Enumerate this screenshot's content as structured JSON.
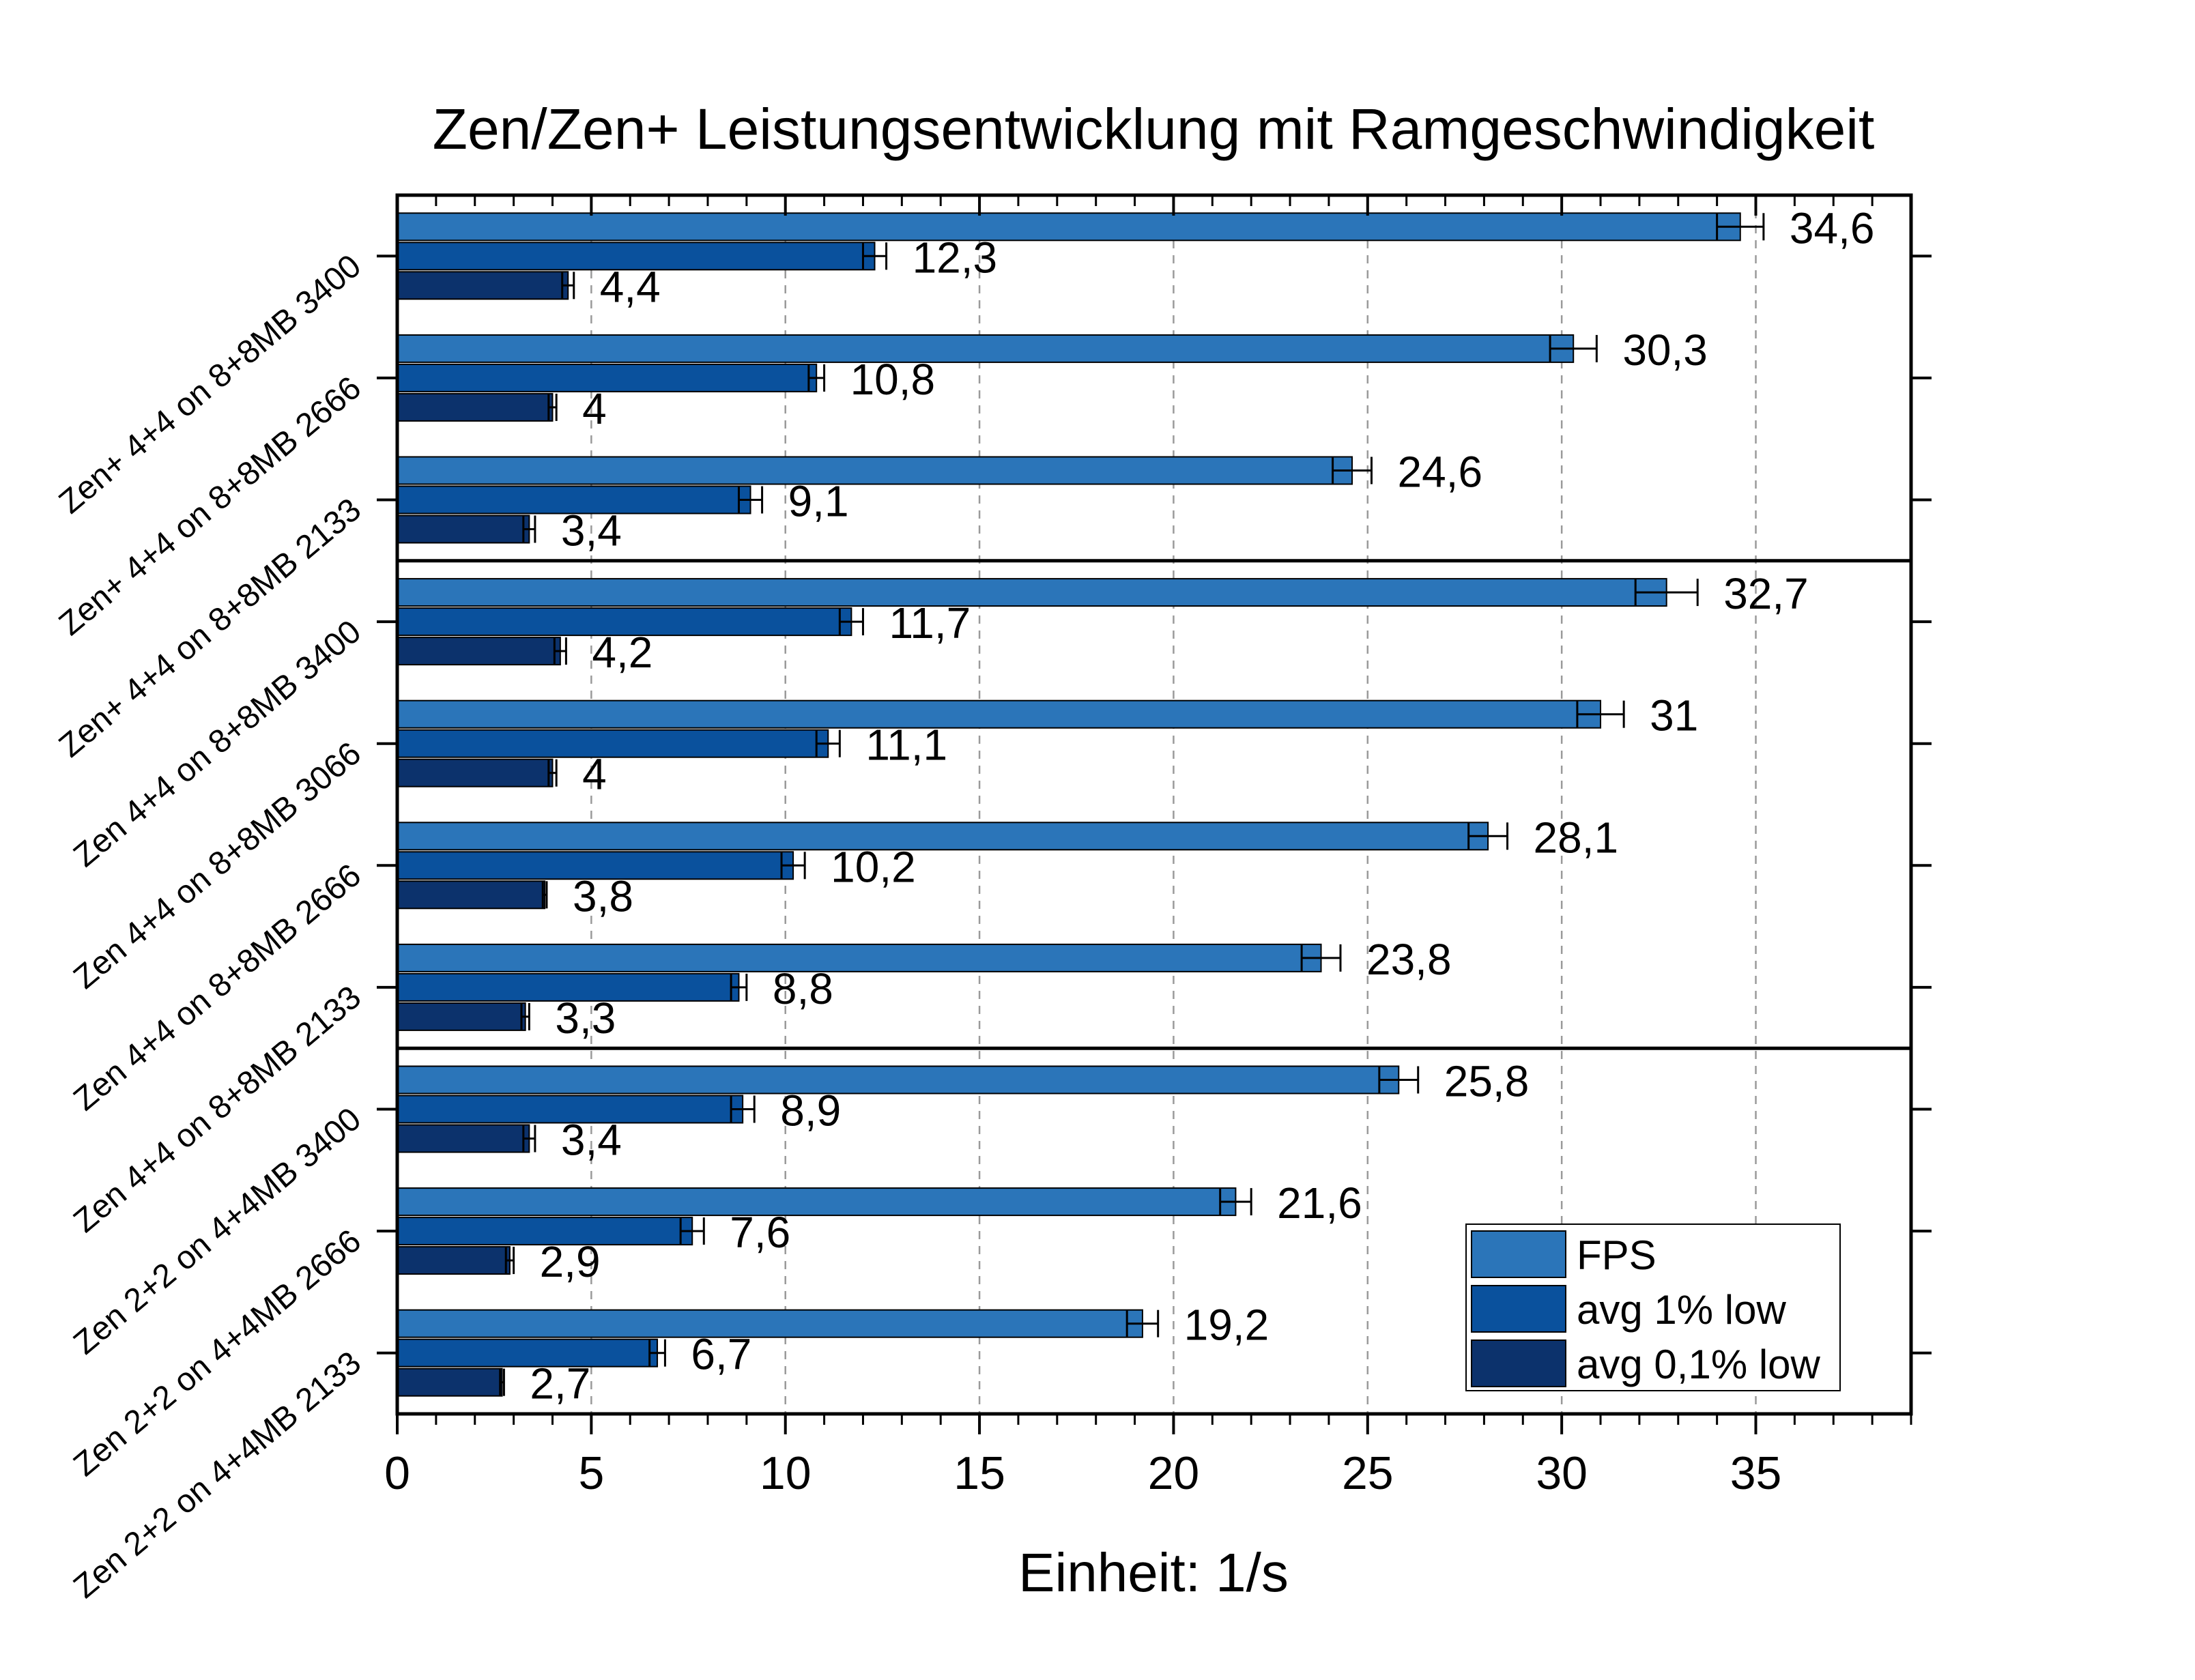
{
  "chart_data": {
    "type": "bar",
    "orientation": "horizontal",
    "title": "Zen/Zen+ Leistungsentwicklung mit Ramgeschwindigkeit",
    "xlabel": "Einheit: 1/s",
    "ylabel": "",
    "xlim": [
      0,
      39
    ],
    "xticks": [
      0,
      5,
      10,
      15,
      20,
      25,
      30,
      35
    ],
    "grid": "vertical dashed",
    "legend_position": "bottom-right",
    "categories": [
      "Zen+ 4+4 on 8+8MB 3400",
      "Zen+ 4+4 on 8+8MB 2666",
      "Zen+ 4+4 on 8+8MB 2133",
      "Zen 4+4 on 8+8MB 3400",
      "Zen 4+4 on 8+8MB 3066",
      "Zen 4+4 on 8+8MB 2666",
      "Zen 4+4 on 8+8MB 2133",
      "Zen 2+2 on 4+4MB 3400",
      "Zen 2+2 on 4+4MB 2666",
      "Zen 2+2 on 4+4MB 2133"
    ],
    "group_separators_after": [
      2,
      6
    ],
    "series": [
      {
        "name": "FPS",
        "color": "#2b75b9",
        "values": [
          34.6,
          30.3,
          24.6,
          32.7,
          31,
          28.1,
          23.8,
          25.8,
          21.6,
          19.2
        ],
        "labels": [
          "34,6",
          "30,3",
          "24,6",
          "32,7",
          "31",
          "28,1",
          "23,8",
          "25,8",
          "21,6",
          "19,2"
        ],
        "error": [
          0.6,
          0.6,
          0.5,
          0.8,
          0.6,
          0.5,
          0.5,
          0.5,
          0.4,
          0.4
        ]
      },
      {
        "name": "avg 1% low",
        "color": "#0a519d",
        "values": [
          12.3,
          10.8,
          9.1,
          11.7,
          11.1,
          10.2,
          8.8,
          8.9,
          7.6,
          6.7
        ],
        "labels": [
          "12,3",
          "10,8",
          "9,1",
          "11,7",
          "11,1",
          "10,2",
          "8,8",
          "8,9",
          "7,6",
          "6,7"
        ],
        "error": [
          0.3,
          0.2,
          0.3,
          0.3,
          0.3,
          0.3,
          0.2,
          0.3,
          0.3,
          0.2
        ]
      },
      {
        "name": "avg 0,1% low",
        "color": "#0c326c",
        "values": [
          4.4,
          4,
          3.4,
          4.2,
          4,
          3.8,
          3.3,
          3.4,
          2.9,
          2.7
        ],
        "labels": [
          "4,4",
          "4",
          "3,4",
          "4,2",
          "4",
          "3,8",
          "3,3",
          "3,4",
          "2,9",
          "2,7"
        ],
        "error": [
          0.15,
          0.1,
          0.15,
          0.15,
          0.1,
          0.05,
          0.1,
          0.15,
          0.1,
          0.05
        ]
      }
    ]
  }
}
